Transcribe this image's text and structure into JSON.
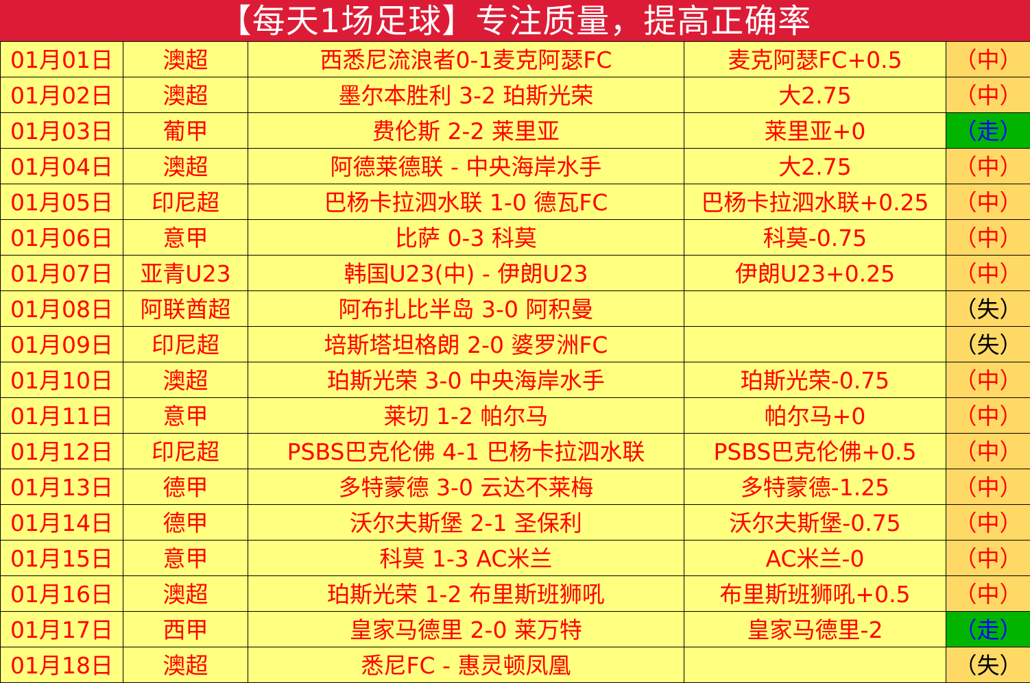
{
  "title": "【每天1场足球】专注质量，提高正确率",
  "colors": {
    "header_bg": "#dc1c36",
    "cell_bg": "#ffff80",
    "result_bg": "#ffd966",
    "push_bg": "#00b400",
    "text": "#ff0000",
    "push_text": "#0000ff",
    "lose_text": "#000000"
  },
  "rows": [
    {
      "date": "01月01日",
      "league": "澳超",
      "match": "西悉尼流浪者0-1麦克阿瑟FC",
      "tip": "麦克阿瑟FC+0.5",
      "result": "（中）",
      "status": "win"
    },
    {
      "date": "01月02日",
      "league": "澳超",
      "match": "墨尔本胜利 3-2 珀斯光荣",
      "tip": "大2.75",
      "result": "（中）",
      "status": "win"
    },
    {
      "date": "01月03日",
      "league": "葡甲",
      "match": "费伦斯 2-2 莱里亚",
      "tip": "莱里亚+0",
      "result": "（走）",
      "status": "push"
    },
    {
      "date": "01月04日",
      "league": "澳超",
      "match": "阿德莱德联 - 中央海岸水手",
      "tip": "大2.75",
      "result": "（中）",
      "status": "win"
    },
    {
      "date": "01月05日",
      "league": "印尼超",
      "match": "巴杨卡拉泗水联 1-0 德瓦FC",
      "tip": "巴杨卡拉泗水联+0.25",
      "result": "（中）",
      "status": "win"
    },
    {
      "date": "01月06日",
      "league": "意甲",
      "match": "比萨 0-3 科莫",
      "tip": "科莫-0.75",
      "result": "（中）",
      "status": "win"
    },
    {
      "date": "01月07日",
      "league": "亚青U23",
      "match": "韩国U23(中) - 伊朗U23",
      "tip": "伊朗U23+0.25",
      "result": "（中）",
      "status": "win"
    },
    {
      "date": "01月08日",
      "league": "阿联酋超",
      "match": "阿布扎比半岛 3-0 阿积曼",
      "tip": "",
      "result": "（失）",
      "status": "lose"
    },
    {
      "date": "01月09日",
      "league": "印尼超",
      "match": "培斯塔坦格朗 2-0 婆罗洲FC",
      "tip": "",
      "result": "（失）",
      "status": "lose"
    },
    {
      "date": "01月10日",
      "league": "澳超",
      "match": "珀斯光荣 3-0 中央海岸水手",
      "tip": "珀斯光荣-0.75",
      "result": "（中）",
      "status": "win"
    },
    {
      "date": "01月11日",
      "league": "意甲",
      "match": "莱切 1-2 帕尔马",
      "tip": "帕尔马+0",
      "result": "（中）",
      "status": "win"
    },
    {
      "date": "01月12日",
      "league": "印尼超",
      "match": "PSBS巴克伦佛 4-1 巴杨卡拉泗水联",
      "tip": "PSBS巴克伦佛+0.5",
      "result": "（中）",
      "status": "win"
    },
    {
      "date": "01月13日",
      "league": "德甲",
      "match": "多特蒙德 3-0 云达不莱梅",
      "tip": "多特蒙德-1.25",
      "result": "（中）",
      "status": "win"
    },
    {
      "date": "01月14日",
      "league": "德甲",
      "match": "沃尔夫斯堡 2-1 圣保利",
      "tip": "沃尔夫斯堡-0.75",
      "result": "（中）",
      "status": "win"
    },
    {
      "date": "01月15日",
      "league": "意甲",
      "match": "科莫 1-3 AC米兰",
      "tip": "AC米兰-0",
      "result": "（中）",
      "status": "win"
    },
    {
      "date": "01月16日",
      "league": "澳超",
      "match": "珀斯光荣 1-2 布里斯班狮吼",
      "tip": "布里斯班狮吼+0.5",
      "result": "（中）",
      "status": "win"
    },
    {
      "date": "01月17日",
      "league": "西甲",
      "match": "皇家马德里 2-0 莱万特",
      "tip": "皇家马德里-2",
      "result": "（走）",
      "status": "push"
    },
    {
      "date": "01月18日",
      "league": "澳超",
      "match": "悉尼FC - 惠灵顿凤凰",
      "tip": "",
      "result": "（失）",
      "status": "lose"
    }
  ]
}
